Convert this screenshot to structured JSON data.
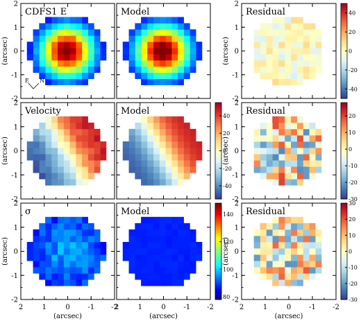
{
  "figure": {
    "axis_label": "(arcsec)"
  },
  "chart_data": {
    "type": "heatmap",
    "x": [
      2,
      1,
      0,
      -1,
      -2
    ],
    "y": [
      -2,
      -1,
      0,
      1,
      2
    ],
    "xlim": [
      2,
      -2
    ],
    "ylim": [
      -2,
      2
    ],
    "xticks": [
      "2",
      "1",
      "0",
      "-1",
      "-2"
    ],
    "yticks": [
      "-2",
      "-1",
      "0",
      "1",
      "2"
    ],
    "xlabel": "(arcsec)",
    "ylabel": "(arcsec)",
    "rows": [
      {
        "panels": [
          {
            "label": "CDFS1 E",
            "kind": "flux",
            "compass": {
              "N": "N",
              "E": "E"
            }
          },
          {
            "label": "Model",
            "kind": "flux_model"
          },
          {
            "label": "Residual",
            "kind": "flux_residual"
          }
        ],
        "colorbar": {
          "ticks": [
            "40",
            "20",
            "0",
            "-20",
            "-40"
          ],
          "unit": "%",
          "range": [
            -50,
            50
          ]
        }
      },
      {
        "panels": [
          {
            "label": "Velocity",
            "kind": "velocity"
          },
          {
            "label": "Model",
            "kind": "velocity_model"
          },
          {
            "label": "Residual",
            "kind": "velocity_residual"
          }
        ],
        "colorbars": [
          {
            "ticks": [
              "40",
              "20",
              "0",
              "-20",
              "-40"
            ],
            "range": [
              -55,
              55
            ]
          },
          {
            "ticks": [
              "20",
              "10",
              "0",
              "-10",
              "-20",
              "-30"
            ],
            "unit": "km/s",
            "range": [
              -30,
              28
            ]
          }
        ]
      },
      {
        "panels": [
          {
            "label": "σ",
            "kind": "sigma"
          },
          {
            "label": "Model",
            "kind": "sigma_model"
          },
          {
            "label": "Residual",
            "kind": "sigma_residual"
          }
        ],
        "colorbars": [
          {
            "ticks": [
              "140",
              "120",
              "100",
              "80"
            ],
            "range": [
              78,
              148
            ]
          },
          {
            "ticks": [
              "30",
              "20",
              "10",
              "0",
              "-10",
              "-20",
              "-30"
            ],
            "unit": "km/s",
            "range": [
              -30,
              30
            ]
          }
        ]
      }
    ]
  }
}
